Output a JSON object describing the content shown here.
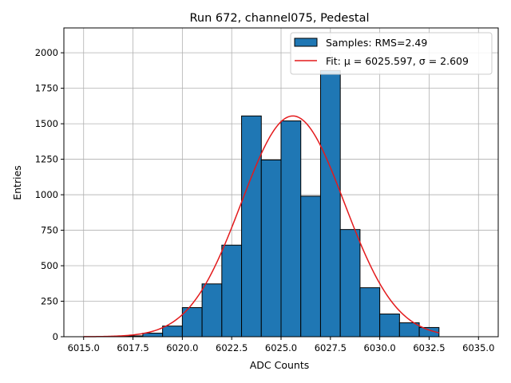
{
  "chart_data": {
    "type": "bar",
    "title": "Run 672, channel075, Pedestal",
    "xlabel": "ADC Counts",
    "ylabel": "Entries",
    "xlim": [
      6014.0,
      6036.0
    ],
    "ylim": [
      0,
      2175
    ],
    "xticks": [
      6015.0,
      6017.5,
      6020.0,
      6022.5,
      6025.0,
      6027.5,
      6030.0,
      6032.5,
      6035.0
    ],
    "xtick_labels": [
      "6015.0",
      "6017.5",
      "6020.0",
      "6022.5",
      "6025.0",
      "6027.5",
      "6030.0",
      "6032.5",
      "6035.0"
    ],
    "yticks": [
      0,
      250,
      500,
      750,
      1000,
      1250,
      1500,
      1750,
      2000
    ],
    "ytick_labels": [
      "0",
      "250",
      "500",
      "750",
      "1000",
      "1250",
      "1500",
      "1750",
      "2000"
    ],
    "grid": true,
    "legend_position": "top-right",
    "bin_edges": [
      6015,
      6016,
      6017,
      6018,
      6019,
      6020,
      6021,
      6022,
      6023,
      6024,
      6025,
      6026,
      6027,
      6028,
      6029,
      6030,
      6031,
      6032,
      6033
    ],
    "counts": [
      0,
      2,
      6,
      25,
      75,
      205,
      372,
      645,
      1555,
      1245,
      1520,
      990,
      1875,
      755,
      345,
      160,
      98,
      65
    ],
    "series": [
      {
        "name": "Samples: RMS=2.49",
        "type": "histogram",
        "color": "#1f77b4",
        "edgecolor": "#000000"
      },
      {
        "name": "Fit: μ = 6025.597, σ = 2.609",
        "type": "line",
        "color": "#e31a1c",
        "mu": 6025.597,
        "sigma": 2.609,
        "amplitude": 1555,
        "x_range": [
          6015,
          6033
        ]
      }
    ]
  }
}
